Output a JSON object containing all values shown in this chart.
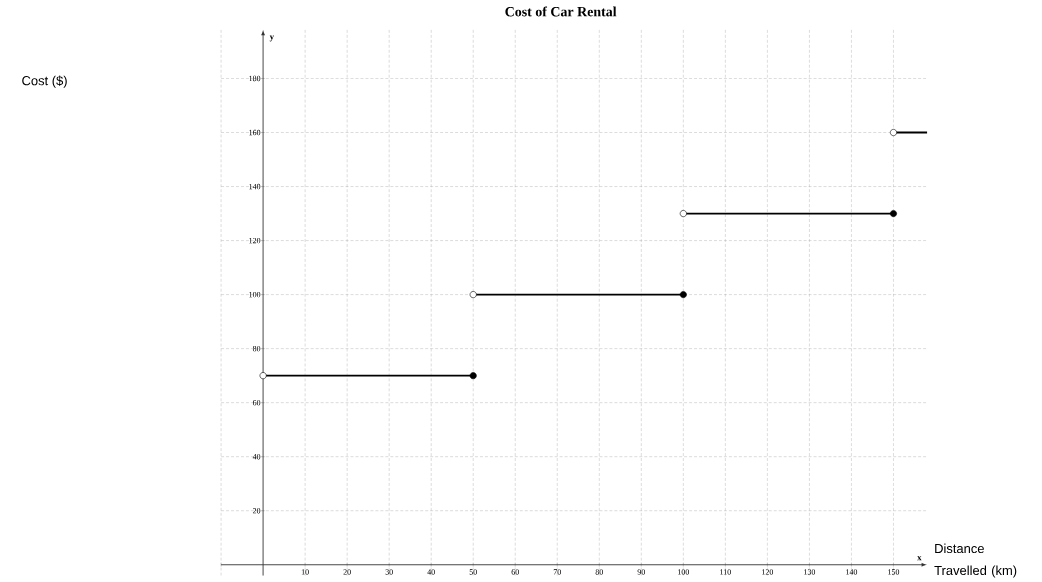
{
  "chart_data": {
    "type": "line",
    "title": "Cost of Car Rental",
    "xlabel": "Distance Travelled (km)",
    "annotations": [
      "y",
      "x",
      "Cost ($)"
    ],
    "series": [
      {
        "color": "#000000",
        "x": [
          0,
          50
        ],
        "values": [
          70,
          70
        ]
      },
      {
        "color": "#000000",
        "x": [
          50,
          100
        ],
        "values": [
          100,
          100
        ]
      },
      {
        "color": "#000000",
        "x": [
          100,
          150
        ],
        "values": [
          130,
          130
        ]
      },
      {
        "color": "#000000",
        "x": [
          150,
          158
        ],
        "values": [
          160,
          160
        ]
      },
      {
        "type": "scatter",
        "marker": "circle",
        "color": "#000000",
        "x": [
          50,
          100,
          150
        ],
        "values": [
          70,
          100,
          130
        ]
      },
      {
        "type": "scatter",
        "marker": "circle",
        "color": "#ffffff",
        "x": [
          0,
          50,
          100,
          150
        ],
        "values": [
          70,
          100,
          130,
          160
        ]
      }
    ],
    "xlim": [
      -10,
      158
    ],
    "ylim": [
      -4,
      198
    ],
    "xticks": [
      {
        "value": -10,
        "label": null
      },
      10,
      20,
      30,
      40,
      50,
      60,
      70,
      80,
      90,
      100,
      110,
      120,
      130,
      140,
      150
    ],
    "yticks": [
      20,
      40,
      60,
      80,
      100,
      120,
      140,
      160,
      180
    ],
    "grid": true,
    "line_style": "solid"
  }
}
